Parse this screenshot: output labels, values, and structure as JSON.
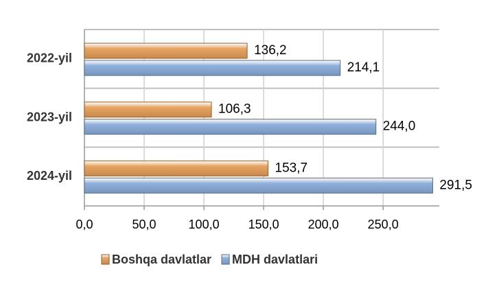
{
  "chart_data": {
    "type": "bar",
    "orientation": "horizontal",
    "categories": [
      "2022-yil",
      "2023-yil",
      "2024-yil"
    ],
    "series": [
      {
        "name": "Boshqa davlatlar",
        "color": "#e8a35f",
        "values": [
          136.2,
          106.3,
          153.7
        ],
        "value_labels": [
          "136,2",
          "106,3",
          "153,7"
        ]
      },
      {
        "name": "MDH davlatlari",
        "color": "#8fb0dc",
        "values": [
          214.1,
          244.0,
          291.5
        ],
        "value_labels": [
          "214,1",
          "244,0",
          "291,5"
        ]
      }
    ],
    "xlim": [
      0,
      297
    ],
    "xticks": [
      {
        "value": 0,
        "label": "0,0"
      },
      {
        "value": 50,
        "label": "50,0"
      },
      {
        "value": 100,
        "label": "100,0"
      },
      {
        "value": 150,
        "label": "150,0"
      },
      {
        "value": 200,
        "label": "200,0"
      },
      {
        "value": 250,
        "label": "250,0"
      }
    ],
    "grid": true,
    "legend": "bottom"
  }
}
